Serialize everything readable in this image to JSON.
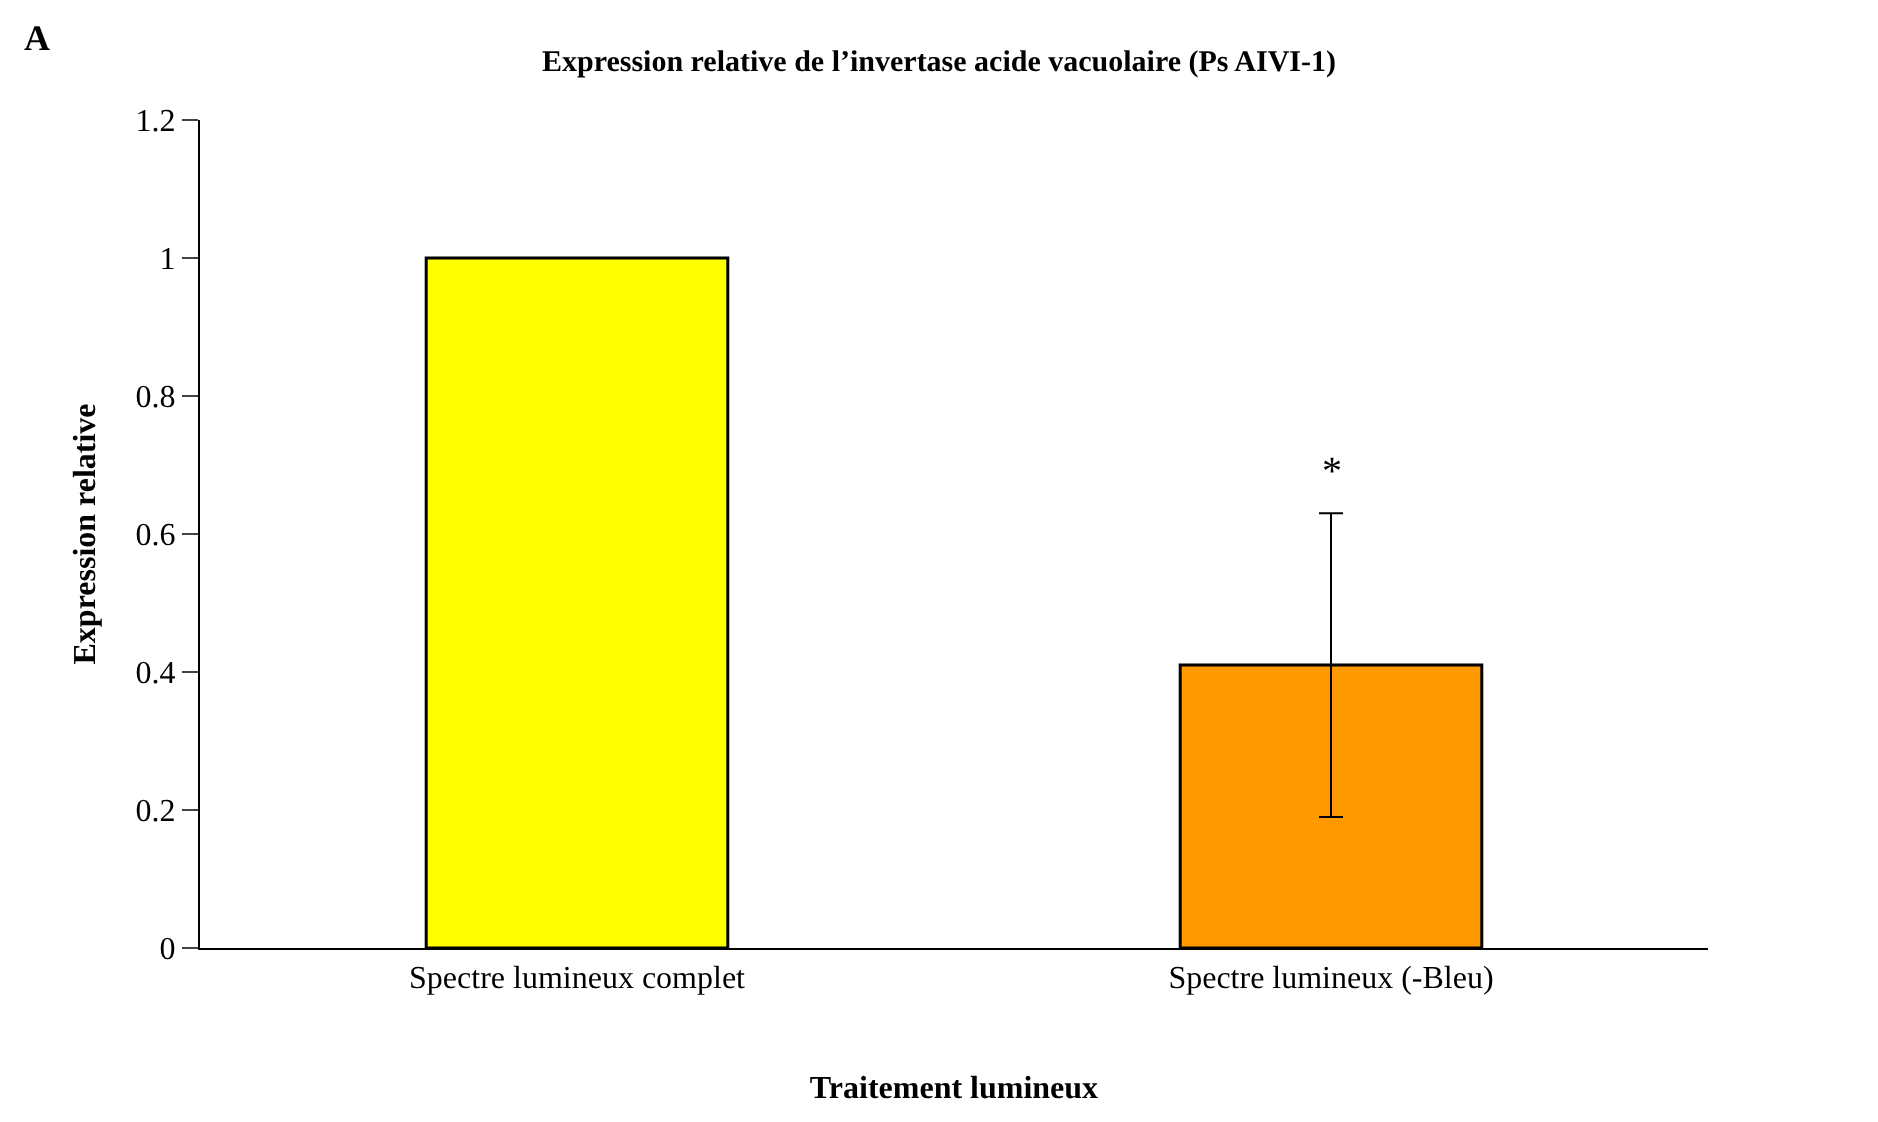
{
  "chart_data": {
    "type": "bar",
    "title": "Expression relative de l’invertase acide vacuolaire (Ps AIVI-1)",
    "xlabel": "Traitement lumineux",
    "ylabel": "Expression relative",
    "categories": [
      "Spectre lumineux complet",
      "Spectre lumineux (-Bleu)"
    ],
    "values": [
      1,
      0.41
    ],
    "colors": [
      "#ffff00",
      "#ff9900"
    ],
    "errors": [
      null,
      0.22
    ],
    "ylim": [
      0,
      1.2
    ],
    "yticks": [
      0,
      0.2,
      0.4,
      0.6,
      0.8,
      1,
      1.2
    ],
    "annotations": [
      "A",
      "*"
    ]
  }
}
